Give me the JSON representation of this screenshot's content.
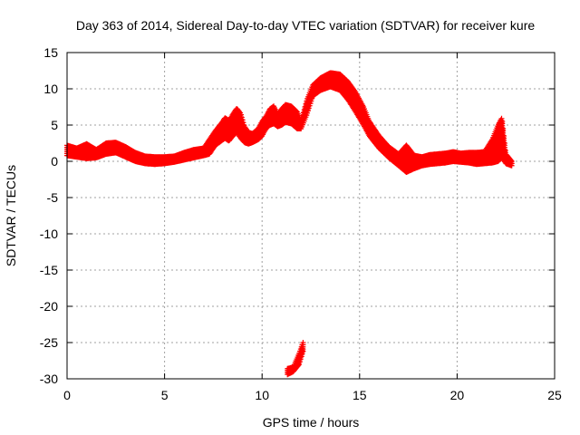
{
  "chart_data": {
    "type": "scatter",
    "title": "Day 363 of 2014, Sidereal Day-to-day VTEC variation (SDTVAR) for receiver kure",
    "xlabel": "GPS time / hours",
    "ylabel": "SDTVAR / TECUs",
    "xlim": [
      0,
      25
    ],
    "ylim": [
      -30,
      15
    ],
    "xticks": [
      0,
      5,
      10,
      15,
      20,
      25
    ],
    "yticks": [
      15,
      10,
      5,
      0,
      -5,
      -10,
      -15,
      -20,
      -25,
      -30
    ],
    "grid": true,
    "series": [
      {
        "name": "SDTVAR",
        "color": "#ff0000",
        "marker": "plus",
        "segments": [
          {
            "name": "main-trace",
            "upper": [
              [
                0.0,
                2.2
              ],
              [
                0.5,
                1.8
              ],
              [
                1.0,
                2.4
              ],
              [
                1.5,
                1.6
              ],
              [
                2.0,
                2.5
              ],
              [
                2.5,
                2.6
              ],
              [
                3.0,
                2.0
              ],
              [
                3.5,
                1.2
              ],
              [
                4.0,
                0.7
              ],
              [
                4.5,
                0.6
              ],
              [
                5.0,
                0.6
              ],
              [
                5.5,
                0.7
              ],
              [
                6.0,
                1.2
              ],
              [
                6.5,
                1.6
              ],
              [
                7.0,
                1.8
              ],
              [
                7.3,
                3.0
              ],
              [
                7.6,
                4.2
              ],
              [
                7.9,
                5.2
              ],
              [
                8.1,
                6.0
              ],
              [
                8.3,
                5.6
              ],
              [
                8.5,
                6.5
              ],
              [
                8.7,
                7.3
              ],
              [
                8.9,
                6.6
              ],
              [
                9.1,
                4.8
              ],
              [
                9.3,
                4.0
              ],
              [
                9.5,
                3.8
              ],
              [
                9.8,
                4.5
              ],
              [
                10.0,
                5.5
              ],
              [
                10.2,
                6.2
              ],
              [
                10.4,
                7.2
              ],
              [
                10.6,
                7.6
              ],
              [
                10.8,
                6.5
              ],
              [
                11.0,
                7.2
              ],
              [
                11.2,
                7.8
              ],
              [
                11.5,
                7.6
              ],
              [
                11.8,
                6.8
              ],
              [
                12.0,
                5.5
              ],
              [
                12.3,
                8.5
              ],
              [
                12.6,
                10.5
              ],
              [
                13.0,
                11.5
              ],
              [
                13.5,
                12.2
              ],
              [
                14.0,
                12.0
              ],
              [
                14.4,
                11.0
              ],
              [
                14.8,
                9.5
              ],
              [
                15.2,
                7.5
              ],
              [
                15.5,
                5.5
              ],
              [
                16.0,
                3.5
              ],
              [
                16.5,
                2.0
              ],
              [
                17.0,
                1.0
              ],
              [
                17.4,
                2.2
              ],
              [
                17.8,
                0.8
              ],
              [
                18.2,
                0.6
              ],
              [
                18.6,
                0.9
              ],
              [
                19.0,
                1.0
              ],
              [
                19.4,
                1.1
              ],
              [
                19.8,
                1.3
              ],
              [
                20.2,
                1.1
              ],
              [
                20.6,
                1.2
              ],
              [
                21.0,
                1.2
              ],
              [
                21.4,
                1.3
              ],
              [
                21.8,
                3.0
              ],
              [
                22.1,
                5.0
              ],
              [
                22.3,
                6.0
              ],
              [
                22.5,
                1.0
              ],
              [
                22.8,
                0.0
              ]
            ],
            "lower": [
              [
                0.0,
                0.8
              ],
              [
                0.5,
                0.6
              ],
              [
                1.0,
                0.4
              ],
              [
                1.5,
                0.5
              ],
              [
                2.0,
                1.0
              ],
              [
                2.5,
                1.2
              ],
              [
                3.0,
                0.6
              ],
              [
                3.5,
                0.0
              ],
              [
                4.0,
                -0.3
              ],
              [
                4.5,
                -0.4
              ],
              [
                5.0,
                -0.3
              ],
              [
                5.5,
                -0.1
              ],
              [
                6.0,
                0.2
              ],
              [
                6.5,
                0.5
              ],
              [
                7.0,
                0.8
              ],
              [
                7.3,
                1.0
              ],
              [
                7.6,
                2.2
              ],
              [
                7.9,
                2.8
              ],
              [
                8.1,
                3.2
              ],
              [
                8.3,
                2.8
              ],
              [
                8.5,
                3.5
              ],
              [
                8.7,
                4.0
              ],
              [
                8.9,
                3.2
              ],
              [
                9.1,
                2.6
              ],
              [
                9.3,
                2.4
              ],
              [
                9.5,
                2.6
              ],
              [
                9.8,
                3.0
              ],
              [
                10.0,
                3.5
              ],
              [
                10.2,
                4.5
              ],
              [
                10.4,
                5.0
              ],
              [
                10.6,
                5.2
              ],
              [
                10.8,
                4.8
              ],
              [
                11.0,
                5.0
              ],
              [
                11.2,
                5.4
              ],
              [
                11.5,
                5.2
              ],
              [
                11.8,
                4.5
              ],
              [
                12.0,
                4.5
              ],
              [
                12.3,
                6.5
              ],
              [
                12.6,
                9.0
              ],
              [
                13.0,
                9.8
              ],
              [
                13.5,
                10.3
              ],
              [
                14.0,
                9.8
              ],
              [
                14.4,
                8.5
              ],
              [
                14.8,
                6.8
              ],
              [
                15.2,
                5.0
              ],
              [
                15.5,
                3.5
              ],
              [
                16.0,
                1.8
              ],
              [
                16.5,
                0.5
              ],
              [
                17.0,
                -0.6
              ],
              [
                17.4,
                -1.5
              ],
              [
                17.8,
                -1.0
              ],
              [
                18.2,
                -0.6
              ],
              [
                18.6,
                -0.4
              ],
              [
                19.0,
                -0.3
              ],
              [
                19.4,
                -0.2
              ],
              [
                19.8,
                0.0
              ],
              [
                20.2,
                -0.1
              ],
              [
                20.6,
                -0.2
              ],
              [
                21.0,
                -0.4
              ],
              [
                21.4,
                -0.3
              ],
              [
                21.8,
                -0.2
              ],
              [
                22.1,
                0.0
              ],
              [
                22.3,
                0.5
              ],
              [
                22.5,
                -0.3
              ],
              [
                22.8,
                -0.6
              ]
            ]
          },
          {
            "name": "outlier-trace",
            "upper": [
              [
                11.3,
                -28.6
              ],
              [
                11.6,
                -28.4
              ],
              [
                11.9,
                -26.5
              ],
              [
                12.1,
                -25.0
              ]
            ],
            "lower": [
              [
                11.3,
                -29.4
              ],
              [
                11.6,
                -29.0
              ],
              [
                11.9,
                -28.0
              ],
              [
                12.1,
                -26.2
              ]
            ]
          }
        ]
      }
    ]
  }
}
